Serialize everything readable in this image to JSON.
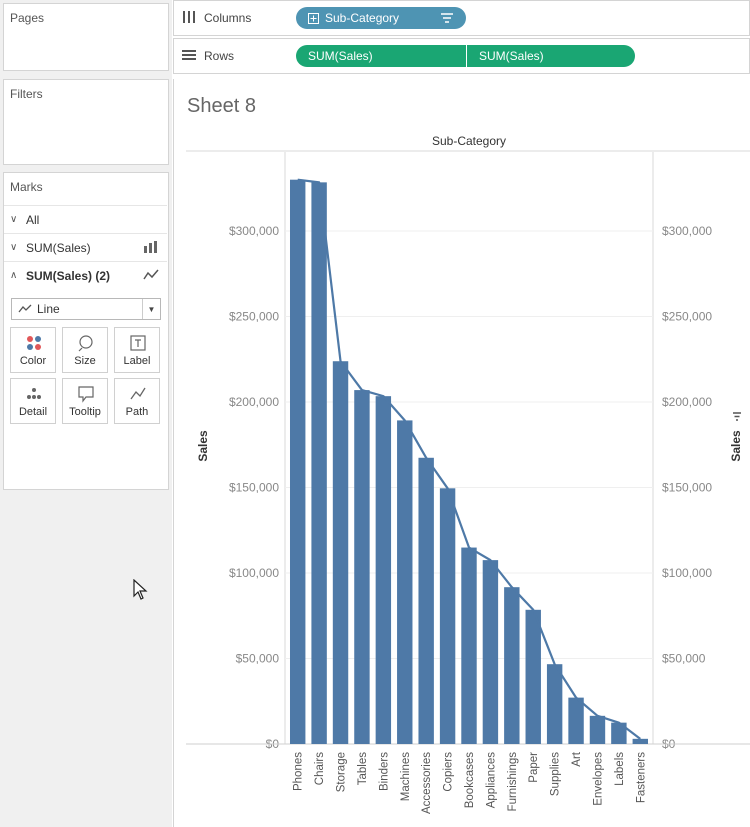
{
  "panels": {
    "pages_title": "Pages",
    "filters_title": "Filters",
    "marks_title": "Marks"
  },
  "marks": {
    "rows": [
      {
        "label": "All"
      },
      {
        "label": "SUM(Sales)"
      },
      {
        "label": "SUM(Sales) (2)"
      }
    ],
    "mark_type": "Line",
    "buttons": [
      {
        "label": "Color",
        "icon": "color-dots-icon"
      },
      {
        "label": "Size",
        "icon": "size-icon"
      },
      {
        "label": "Label",
        "icon": "label-icon"
      },
      {
        "label": "Detail",
        "icon": "detail-icon"
      },
      {
        "label": "Tooltip",
        "icon": "tooltip-icon"
      },
      {
        "label": "Path",
        "icon": "path-icon"
      }
    ]
  },
  "shelves": {
    "columns_label": "Columns",
    "rows_label": "Rows",
    "columns_pill": "Sub-Category",
    "rows_pills": [
      "SUM(Sales)",
      "SUM(Sales)"
    ]
  },
  "sheet": {
    "title": "Sheet 8"
  },
  "colors": {
    "bar": "#4e79a7",
    "pill_blue": "#4e94b3",
    "pill_green": "#1aa673"
  },
  "chart_data": {
    "type": "bar",
    "title": "Sub-Category",
    "ylabel": "Sales",
    "ylabel_right": "Sales",
    "ylim": [
      0,
      340000
    ],
    "y_ticks": [
      0,
      50000,
      100000,
      150000,
      200000,
      250000,
      300000
    ],
    "y_tick_labels": [
      "$0",
      "$50,000",
      "$100,000",
      "$150,000",
      "$200,000",
      "$250,000",
      "$300,000"
    ],
    "categories": [
      "Phones",
      "Chairs",
      "Storage",
      "Tables",
      "Binders",
      "Machines",
      "Accessories",
      "Copiers",
      "Bookcases",
      "Appliances",
      "Furnishings",
      "Paper",
      "Supplies",
      "Art",
      "Envelopes",
      "Labels",
      "Fasteners"
    ],
    "series": [
      {
        "name": "SUM(Sales)",
        "mark": "bar",
        "values": [
          330007,
          328449,
          223844,
          206966,
          203413,
          189239,
          167380,
          149528,
          114880,
          107532,
          91705,
          78479,
          46674,
          27119,
          16476,
          12486,
          3024
        ]
      },
      {
        "name": "SUM(Sales) (2)",
        "mark": "line",
        "values": [
          330007,
          328449,
          223844,
          206966,
          203413,
          189239,
          167380,
          149528,
          114880,
          107532,
          91705,
          78479,
          46674,
          27119,
          16476,
          12486,
          3024
        ]
      }
    ],
    "grid": true
  }
}
